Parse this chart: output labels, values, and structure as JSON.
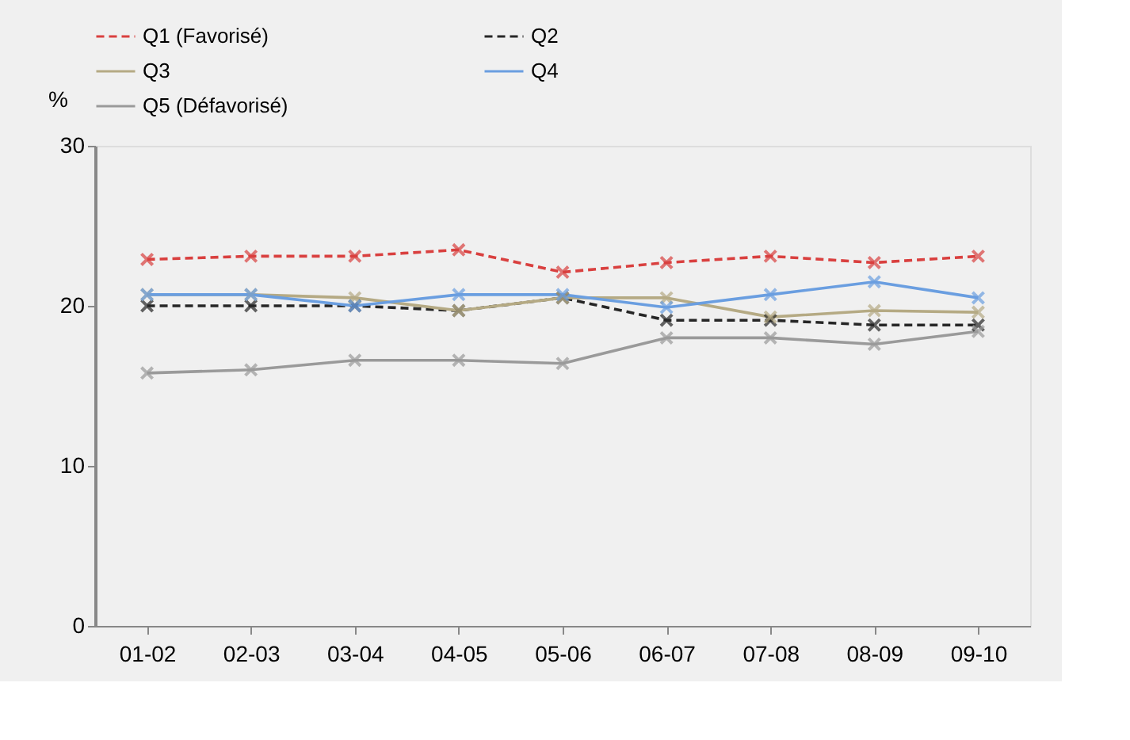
{
  "chart_data": {
    "type": "line",
    "ylabel": "%",
    "categories": [
      "01-02",
      "02-03",
      "03-04",
      "04-05",
      "05-06",
      "06-07",
      "07-08",
      "08-09",
      "09-10"
    ],
    "series": [
      {
        "name": "Q1 (Favorisé)",
        "color": "#d9403f",
        "line_style": "dashed",
        "values": [
          22.9,
          23.1,
          23.1,
          23.5,
          22.1,
          22.7,
          23.1,
          22.7,
          23.1
        ]
      },
      {
        "name": "Q2",
        "color": "#262626",
        "line_style": "dashed",
        "values": [
          20.0,
          20.0,
          20.0,
          19.7,
          20.5,
          19.1,
          19.1,
          18.8,
          18.8
        ]
      },
      {
        "name": "Q3",
        "color": "#b5aa84",
        "line_style": "solid",
        "values": [
          20.7,
          20.7,
          20.5,
          19.7,
          20.5,
          20.5,
          19.3,
          19.7,
          19.6
        ]
      },
      {
        "name": "Q4",
        "color": "#6a9ee0",
        "line_style": "solid",
        "values": [
          20.7,
          20.7,
          20.0,
          20.7,
          20.7,
          19.9,
          20.7,
          21.5,
          20.5
        ]
      },
      {
        "name": "Q5 (Défavorisé)",
        "color": "#9a9a9a",
        "line_style": "solid",
        "values": [
          15.8,
          16.0,
          16.6,
          16.6,
          16.4,
          18.0,
          18.0,
          17.6,
          18.4
        ]
      }
    ],
    "ylim": [
      0,
      30
    ],
    "yticks": [
      0,
      10,
      20,
      30
    ],
    "grid": false,
    "legend": "top",
    "marker": "cross"
  }
}
